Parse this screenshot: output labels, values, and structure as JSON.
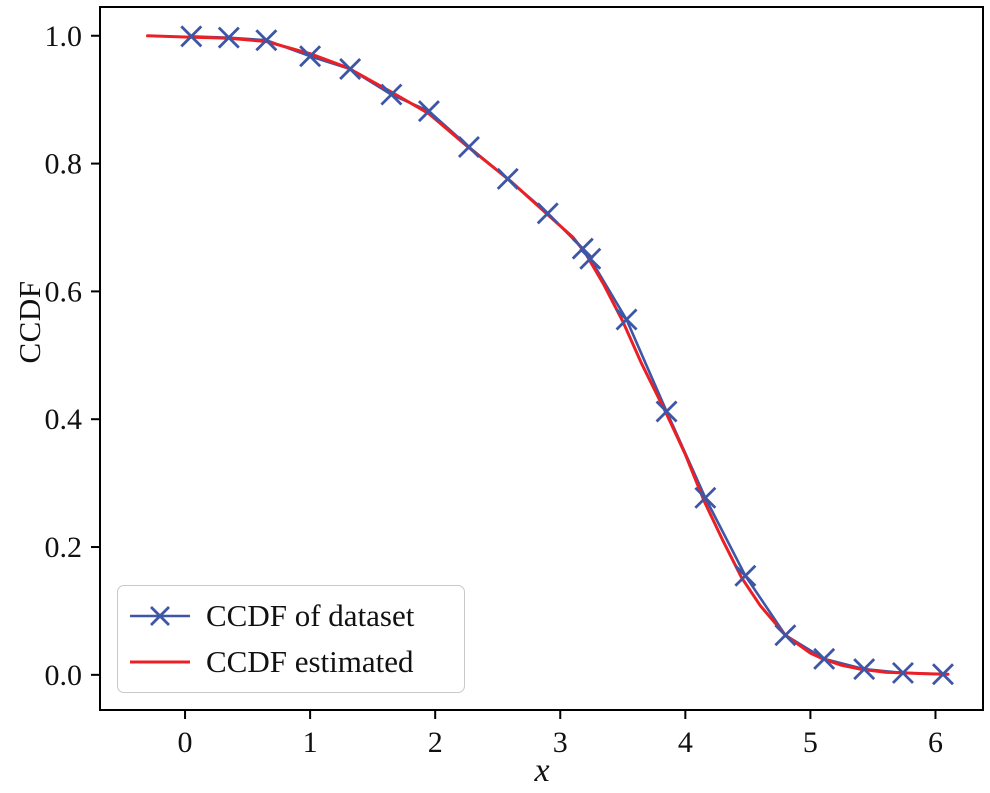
{
  "chart_data": {
    "type": "line",
    "title": "",
    "xlabel": "x",
    "ylabel": "CCDF",
    "grid": false,
    "legend_position": "lower left",
    "xlim": [
      -0.68,
      6.38
    ],
    "ylim": [
      -0.055,
      1.045
    ],
    "xticks": [
      0,
      1,
      2,
      3,
      4,
      5,
      6
    ],
    "xtick_labels": [
      "0",
      "1",
      "2",
      "3",
      "4",
      "5",
      "6"
    ],
    "yticks": [
      0.0,
      0.2,
      0.4,
      0.6,
      0.8,
      1.0
    ],
    "ytick_labels": [
      "0.0",
      "0.2",
      "0.4",
      "0.6",
      "0.8",
      "1.0"
    ],
    "series": [
      {
        "name": "CCDF of dataset",
        "color": "#3d56a6",
        "marker": "x",
        "line_width": 2.6,
        "x": [
          0.05,
          0.35,
          0.65,
          1.0,
          1.32,
          1.65,
          1.95,
          2.27,
          2.58,
          2.9,
          3.18,
          3.24,
          3.53,
          3.85,
          4.16,
          4.48,
          4.8,
          5.11,
          5.43,
          5.74,
          6.06
        ],
        "y": [
          0.999,
          0.997,
          0.993,
          0.968,
          0.948,
          0.908,
          0.882,
          0.826,
          0.776,
          0.722,
          0.667,
          0.651,
          0.556,
          0.412,
          0.277,
          0.155,
          0.062,
          0.025,
          0.009,
          0.003,
          0.001
        ]
      },
      {
        "name": "CCDF estimated",
        "color": "#ec2024",
        "marker": "none",
        "line_width": 3.0,
        "x": [
          -0.3,
          0.0,
          0.35,
          0.65,
          1.0,
          1.3,
          1.65,
          1.95,
          2.25,
          2.6,
          2.9,
          3.1,
          3.2,
          3.35,
          3.5,
          3.65,
          3.85,
          4.0,
          4.15,
          4.3,
          4.45,
          4.6,
          4.8,
          5.0,
          5.1,
          5.25,
          5.4,
          5.6,
          5.75,
          5.9,
          6.1
        ],
        "y": [
          1.0,
          0.998,
          0.996,
          0.991,
          0.972,
          0.95,
          0.912,
          0.878,
          0.828,
          0.773,
          0.72,
          0.685,
          0.66,
          0.61,
          0.553,
          0.487,
          0.408,
          0.345,
          0.272,
          0.21,
          0.152,
          0.108,
          0.062,
          0.034,
          0.025,
          0.015,
          0.009,
          0.004,
          0.003,
          0.002,
          0.001
        ]
      }
    ]
  }
}
